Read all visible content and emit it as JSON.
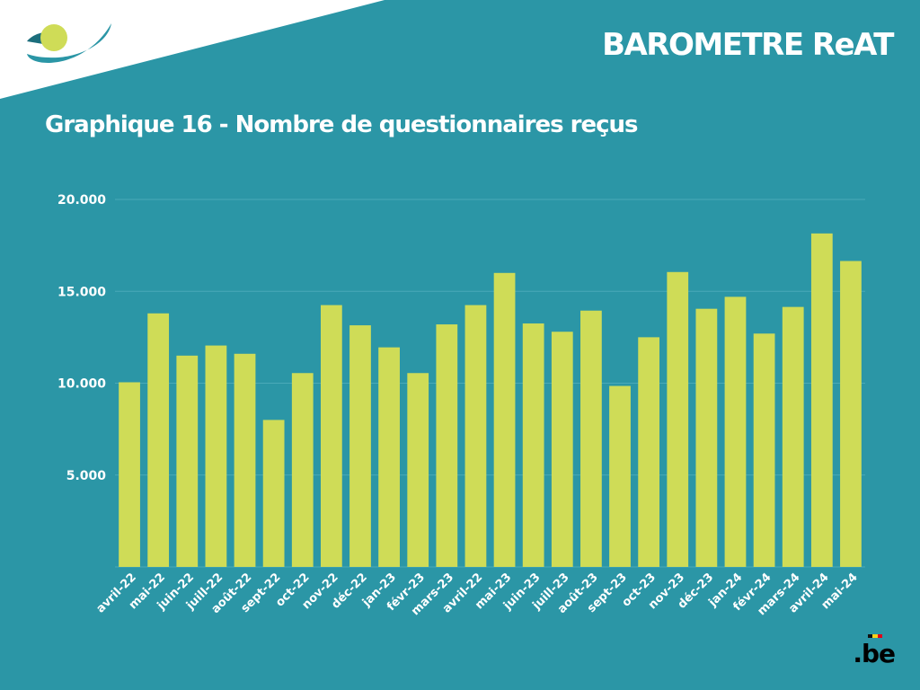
{
  "header": {
    "brand": "BAROMETRE ReAT",
    "title": "Graphique 16 - Nombre de questionnaires reçus"
  },
  "footer": {
    "logo_text": ".be"
  },
  "colors": {
    "background": "#2b96a6",
    "bar": "#cfdc57",
    "text": "#ffffff",
    "grid": "#4aa9b8"
  },
  "icons": {
    "top_left": "circle-swoosh-logo",
    "bottom_right": "be-logo"
  },
  "chart_data": {
    "type": "bar",
    "categories": [
      "avril-22",
      "mai-22",
      "juin-22",
      "juill-22",
      "août-22",
      "sept-22",
      "oct-22",
      "nov-22",
      "déc-22",
      "jan-23",
      "févr-23",
      "mars-23",
      "avril-22",
      "mai-23",
      "juin-23",
      "juill-23",
      "août-23",
      "sept-23",
      "oct-23",
      "nov-23",
      "déc-23",
      "jan-24",
      "févr-24",
      "mars-24",
      "avril-24",
      "mai-24"
    ],
    "values": [
      10050,
      13800,
      11500,
      12050,
      11600,
      8000,
      10550,
      14250,
      13150,
      11950,
      10550,
      13200,
      14250,
      16000,
      13250,
      12800,
      13950,
      9850,
      12500,
      16050,
      14050,
      14700,
      12700,
      14150,
      18150,
      16650
    ],
    "yticks": [
      5000,
      10000,
      15000,
      20000
    ],
    "ytick_labels": [
      "5.000",
      "10.000",
      "15.000",
      "20.000"
    ],
    "ylim": [
      0,
      20000
    ],
    "grid": true,
    "legend": "none"
  }
}
